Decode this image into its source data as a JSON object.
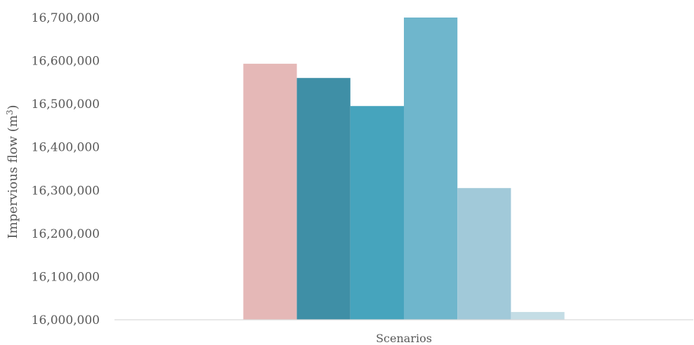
{
  "chart_data": {
    "type": "bar",
    "categories": [
      "Scenarios"
    ],
    "ylabel": "Impervious flow (m",
    "ylabel_sup": "3",
    "ylabel_close": ")",
    "ylim": [
      16000000,
      16700000
    ],
    "yticks": [
      "16,000,000",
      "16,100,000",
      "16,200,000",
      "16,300,000",
      "16,400,000",
      "16,500,000",
      "16,600,000",
      "16,700,000"
    ],
    "grid": false,
    "legend": "none",
    "series": [
      {
        "values": [
          16593000
        ],
        "color": "#e5b8b7"
      },
      {
        "values": [
          16560000
        ],
        "color": "#3f8fa6"
      },
      {
        "values": [
          16495000
        ],
        "color": "#46a4bd"
      },
      {
        "values": [
          16700000
        ],
        "color": "#6fb6cc"
      },
      {
        "values": [
          16305000
        ],
        "color": "#a1c9d9"
      },
      {
        "values": [
          16018000
        ],
        "color": "#c4dde5"
      }
    ],
    "axis_color": "#d9d9d9"
  }
}
